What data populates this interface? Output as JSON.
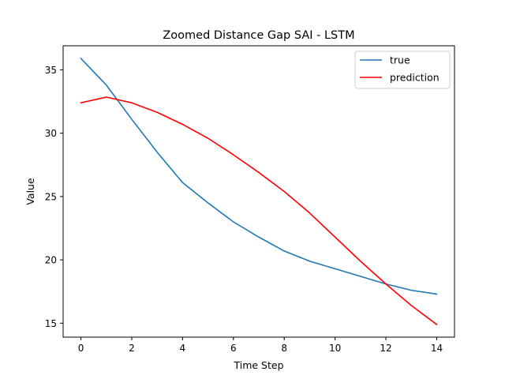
{
  "chart_data": {
    "type": "line",
    "title": "Zoomed Distance Gap SAI - LSTM",
    "xlabel": "Time Step",
    "ylabel": "Value",
    "xlim": [
      -0.7,
      14.7
    ],
    "ylim": [
      13.9,
      36.9
    ],
    "xticks": [
      0,
      2,
      4,
      6,
      8,
      10,
      12,
      14
    ],
    "yticks": [
      15,
      20,
      25,
      30,
      35
    ],
    "grid": false,
    "legend_position": "top-right",
    "x": [
      0,
      1,
      2,
      3,
      4,
      5,
      6,
      7,
      8,
      9,
      10,
      11,
      12,
      13,
      14
    ],
    "series": [
      {
        "name": "true",
        "color": "#1f77b4",
        "values": [
          35.9,
          33.8,
          31.1,
          28.5,
          26.1,
          24.5,
          23.0,
          21.8,
          20.7,
          19.9,
          19.3,
          18.7,
          18.1,
          17.6,
          17.3
        ]
      },
      {
        "name": "prediction",
        "color": "#ff0000",
        "values": [
          32.4,
          32.85,
          32.4,
          31.65,
          30.7,
          29.6,
          28.3,
          26.9,
          25.4,
          23.7,
          21.8,
          19.9,
          18.1,
          16.4,
          14.9
        ]
      }
    ]
  }
}
